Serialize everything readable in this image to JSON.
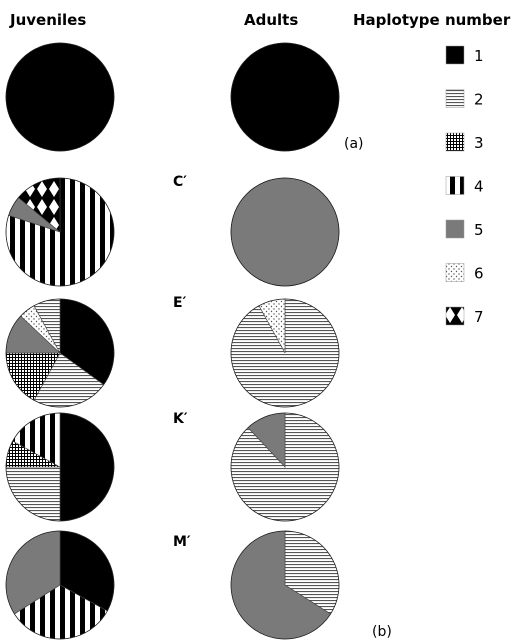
{
  "headers": {
    "juveniles": "Juveniles",
    "adults": "Adults",
    "haplotype": "Haplotype number"
  },
  "panel_labels": {
    "a": "(a)",
    "b": "(b)"
  },
  "chart_data": {
    "type": "pie",
    "legend": [
      {
        "id": 1,
        "label": "1",
        "pattern": "solid-black"
      },
      {
        "id": 2,
        "label": "2",
        "pattern": "horizontal-lines"
      },
      {
        "id": 3,
        "label": "3",
        "pattern": "checker"
      },
      {
        "id": 4,
        "label": "4",
        "pattern": "vertical-stripes"
      },
      {
        "id": 5,
        "label": "5",
        "pattern": "solid-gray"
      },
      {
        "id": 6,
        "label": "6",
        "pattern": "dots"
      },
      {
        "id": 7,
        "label": "7",
        "pattern": "diamonds"
      }
    ],
    "rows": [
      {
        "label": "",
        "juveniles": [
          {
            "h": 1,
            "v": 100
          }
        ],
        "adults": [
          {
            "h": 1,
            "v": 100
          }
        ]
      },
      {
        "label": "C′",
        "juveniles": [
          {
            "h": 4,
            "v": 80
          },
          {
            "h": 5,
            "v": 6
          },
          {
            "h": 7,
            "v": 14
          }
        ],
        "adults": [
          {
            "h": 5,
            "v": 100
          }
        ]
      },
      {
        "label": "E′",
        "juveniles": [
          {
            "h": 1,
            "v": 35
          },
          {
            "h": 2,
            "v": 23
          },
          {
            "h": 3,
            "v": 17
          },
          {
            "h": 5,
            "v": 12
          },
          {
            "h": 6,
            "v": 5
          },
          {
            "h": 2,
            "v": 8
          }
        ],
        "adults": [
          {
            "h": 2,
            "v": 92
          },
          {
            "h": 6,
            "v": 8
          }
        ]
      },
      {
        "label": "K′",
        "juveniles": [
          {
            "h": 1,
            "v": 50
          },
          {
            "h": 2,
            "v": 25
          },
          {
            "h": 3,
            "v": 8
          },
          {
            "h": 4,
            "v": 17
          }
        ],
        "adults": [
          {
            "h": 2,
            "v": 88
          },
          {
            "h": 5,
            "v": 12
          }
        ]
      },
      {
        "label": "M′",
        "juveniles": [
          {
            "h": 1,
            "v": 33
          },
          {
            "h": 4,
            "v": 33
          },
          {
            "h": 5,
            "v": 34
          }
        ],
        "adults": [
          {
            "h": 2,
            "v": 34
          },
          {
            "h": 5,
            "v": 66
          }
        ]
      }
    ]
  }
}
